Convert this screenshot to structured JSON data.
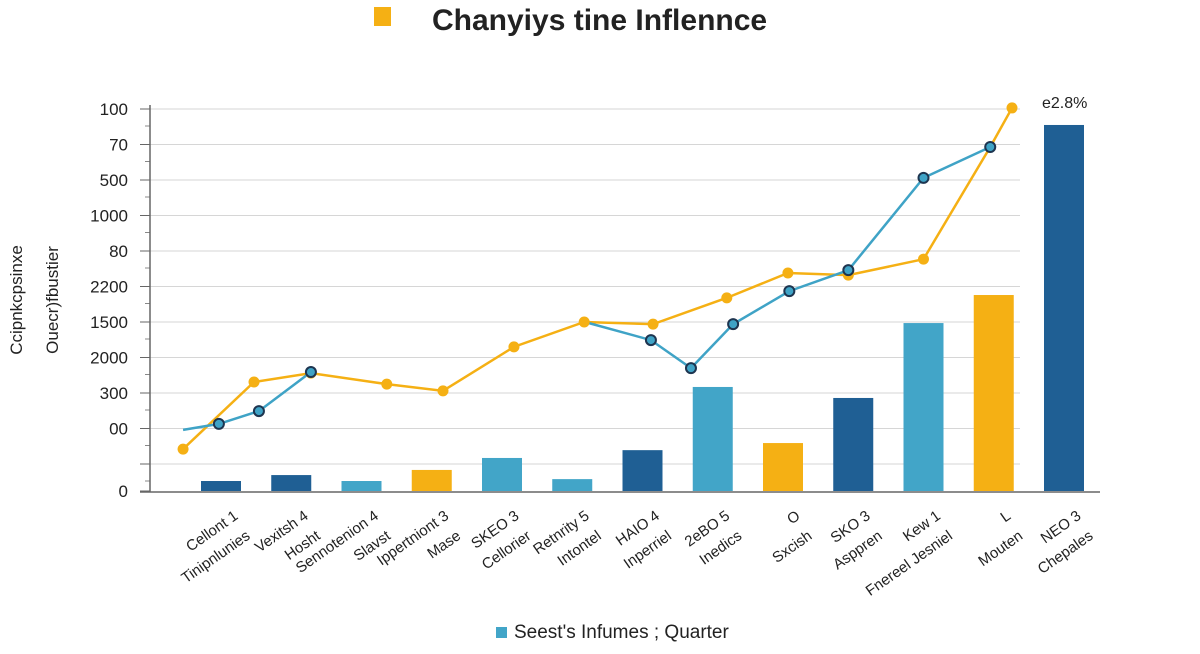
{
  "chart_data": {
    "type": "bar+line",
    "title": "Chanyiys tine Inflennce",
    "ylabel_outer": "Ccipnkcpsinxe",
    "ylabel_inner": "Ouecr)fbustier",
    "y_tick_labels": [
      "0",
      "",
      "00",
      "300",
      "2000",
      "1500",
      "2200",
      "80",
      "1000",
      "500",
      "70",
      "100"
    ],
    "ylim": [
      0,
      11
    ],
    "grid": true,
    "categories": [
      [
        "Cellont 1",
        "Tinipnlunies"
      ],
      [
        "Vexitsh 4",
        "Hosht"
      ],
      [
        "Sennotenion 4",
        "Slavst"
      ],
      [
        "Ippertniont 3",
        "Mase"
      ],
      [
        "SKEO 3",
        "Cellorier"
      ],
      [
        "Retnrity 5",
        "Intontel"
      ],
      [
        "HAIO 4",
        "Inperriel"
      ],
      [
        "2eBO 5",
        "Inedics"
      ],
      [
        "O",
        "Sxcish"
      ],
      [
        "SKO 3",
        "Asppren"
      ],
      [
        "Kew 1",
        "Fnereel Jesniel"
      ],
      [
        "L",
        "Mouten"
      ],
      [
        "NEO 3",
        "Chepales"
      ]
    ],
    "bars": {
      "values": [
        0.37,
        0.59,
        0.37,
        0.78,
        1.17,
        0.44,
        1.39,
        3.17,
        1.59,
        2.86,
        4.97,
        5.76,
        10.55
      ],
      "colors": [
        "#1f5f94",
        "#1f5f94",
        "#42a5c8",
        "#f5b014",
        "#42a5c8",
        "#42a5c8",
        "#1f5f94",
        "#42a5c8",
        "#f5b014",
        "#1f5f94",
        "#42a5c8",
        "#f5b014",
        "#1f5f94"
      ]
    },
    "series": [
      {
        "color": "#f5b014",
        "x": [
          0.46,
          1.47,
          2.28,
          3.36,
          4.16,
          5.17,
          6.17,
          7.15,
          8.2,
          9.07,
          9.93,
          11.0,
          11.95,
          12.26
        ],
        "y": [
          1.42,
          3.31,
          3.56,
          3.25,
          3.06,
          4.3,
          5.0,
          4.94,
          5.68,
          6.38,
          6.32,
          6.77,
          9.93,
          11.03
        ]
      },
      {
        "color": "#3fa3c6",
        "x": [
          0.46,
          0.97,
          1.54,
          2.28,
          null,
          6.18,
          7.12,
          7.69,
          8.29,
          9.09,
          9.93,
          11.0,
          11.95
        ],
        "y": [
          1.96,
          2.13,
          2.49,
          3.59,
          null,
          5.0,
          4.49,
          3.7,
          4.94,
          5.87,
          6.46,
          9.06,
          9.93
        ],
        "markers": [
          false,
          true,
          true,
          true,
          false,
          false,
          true,
          true,
          true,
          true,
          true,
          true,
          true
        ]
      }
    ],
    "annotation": "e2.8%",
    "legend": {
      "label": "Seest's Infumes ; Quarter",
      "color": "#42a5c8",
      "position": "bottom"
    },
    "title_icon_color": "#f5b014"
  }
}
